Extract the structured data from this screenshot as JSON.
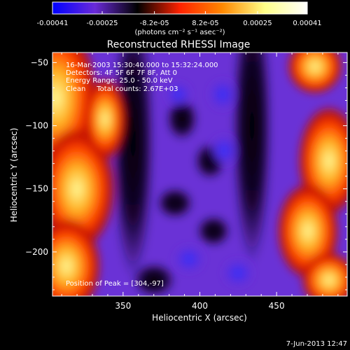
{
  "colorbar": {
    "tick_labels": [
      "-0.00041",
      "-0.00025",
      "-8.2e-05",
      "8.2e-05",
      "0.00025",
      "0.00041"
    ],
    "tick_values": [
      -0.00041,
      -0.00025,
      -8.2e-05,
      8.2e-05,
      0.00025,
      0.00041
    ],
    "range": [
      -0.00041,
      0.00041
    ],
    "units_label": "(photons cm⁻² s⁻¹ asec⁻²)",
    "colors": [
      "#0000ff",
      "#6a2ad8",
      "#000000",
      "#ff2200",
      "#ff8800",
      "#ffff88",
      "#ffffff"
    ]
  },
  "chart_data": {
    "type": "heatmap",
    "title": "Reconstructed RHESSI Image",
    "xlabel": "Heliocentric X (arcsec)",
    "ylabel": "Heliocentric Y (arcsec)",
    "xlim": [
      304,
      496
    ],
    "ylim": [
      -235,
      -42
    ],
    "x_ticks": [
      350,
      400,
      450
    ],
    "y_ticks": [
      -50,
      -100,
      -150,
      -200
    ],
    "x_tick_labels": [
      "350",
      "400",
      "450"
    ],
    "y_tick_labels": [
      "−50",
      "−100",
      "−150",
      "−200"
    ],
    "info_lines": [
      "16-Mar-2003 15:30:40.000 to 15:32:24.000",
      "Detectors: 4F 5F 6F 7F 8F, Att 0",
      "Energy Range: 25.0 - 50.0 keV",
      "Clean     Total counts: 2.67E+03"
    ],
    "peak_label": "Position of Peak = [304,-97]",
    "peak": [
      304,
      -97
    ]
  },
  "footer": {
    "date": "7-Jun-2013 12:47"
  }
}
